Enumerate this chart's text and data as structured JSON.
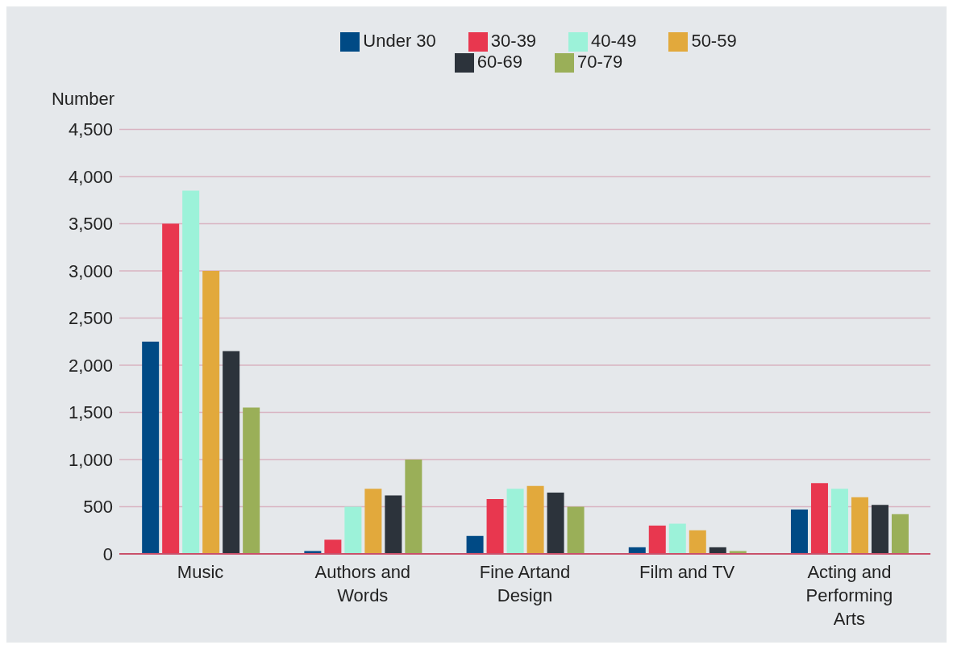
{
  "chart_data": {
    "type": "bar",
    "ylabel": "Number",
    "categories": [
      "Music",
      "Authors and Words",
      "Fine Artand Design",
      "Film and TV",
      "Acting and Performing Arts"
    ],
    "series": [
      {
        "name": "Under 30",
        "color": "#004a85",
        "values": [
          2250,
          30,
          190,
          70,
          470
        ]
      },
      {
        "name": "30-39",
        "color": "#e8374f",
        "values": [
          3500,
          150,
          580,
          300,
          750
        ]
      },
      {
        "name": "40-49",
        "color": "#9cf2d9",
        "values": [
          3850,
          500,
          690,
          320,
          690
        ]
      },
      {
        "name": "50-59",
        "color": "#e2a93c",
        "values": [
          3000,
          690,
          720,
          250,
          600
        ]
      },
      {
        "name": "60-69",
        "color": "#2c333b",
        "values": [
          2150,
          620,
          650,
          70,
          520
        ]
      },
      {
        "name": "70-79",
        "color": "#9aaf58",
        "values": [
          1550,
          1000,
          500,
          30,
          420
        ]
      }
    ],
    "ylim": [
      0,
      4500
    ],
    "yticks": [
      0,
      500,
      {
        "value": 1000,
        "label": "1,000"
      },
      {
        "value": 1500,
        "label": "1,500"
      },
      {
        "value": 2000,
        "label": "2,000"
      },
      {
        "value": 2500,
        "label": "2,500"
      },
      {
        "value": 3000,
        "label": "3,000"
      },
      {
        "value": 3500,
        "label": "3,500"
      },
      {
        "value": 4000,
        "label": "4,000"
      },
      {
        "value": 4500,
        "label": "4,500"
      }
    ],
    "grid": "y",
    "legend": "top"
  }
}
